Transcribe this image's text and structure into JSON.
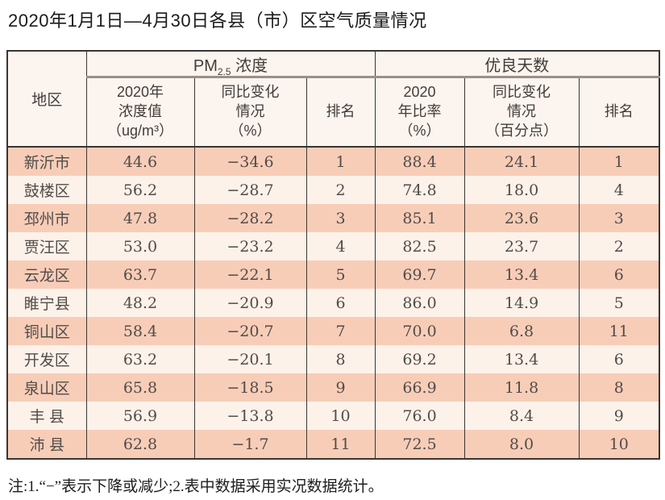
{
  "title": "2020年1月1日—4月30日各县（市）区空气质量情况",
  "footnote": "注:1.“−”表示下降或减少;2.表中数据采用实况数据统计。",
  "colors": {
    "row_salmon": "#f8cdb8",
    "row_cream": "#fdf2ea",
    "header_bg": "#fcf4ef",
    "border_dark": "#3a3531",
    "group_underline_gray": "#9a9089",
    "cell_text": "#514c49"
  },
  "table": {
    "corner_header": "地区",
    "groups": {
      "pm": {
        "prefix": "PM",
        "sub": "2.5",
        "suffix": " 浓度"
      },
      "days": {
        "label": "优良天数"
      }
    },
    "subheaders": {
      "pm_value": "2020年\n浓度值\n（ug/m³）",
      "pm_change": "同比变化\n情况\n（%）",
      "pm_rank": "排名",
      "ratio": "2020\n年比率\n（%）",
      "ratio_change": "同比变化\n情况\n（百分点）",
      "ratio_rank": "排名"
    },
    "rows": [
      {
        "region": "新沂市",
        "pm_value": "44.6",
        "pm_change": "−34.6",
        "pm_rank": "1",
        "ratio": "88.4",
        "ratio_change": "24.1",
        "ratio_rank": "1"
      },
      {
        "region": "鼓楼区",
        "pm_value": "56.2",
        "pm_change": "−28.7",
        "pm_rank": "2",
        "ratio": "74.8",
        "ratio_change": "18.0",
        "ratio_rank": "4"
      },
      {
        "region": "邳州市",
        "pm_value": "47.8",
        "pm_change": "−28.2",
        "pm_rank": "3",
        "ratio": "85.1",
        "ratio_change": "23.6",
        "ratio_rank": "3"
      },
      {
        "region": "贾汪区",
        "pm_value": "53.0",
        "pm_change": "−23.2",
        "pm_rank": "4",
        "ratio": "82.5",
        "ratio_change": "23.7",
        "ratio_rank": "2"
      },
      {
        "region": "云龙区",
        "pm_value": "63.7",
        "pm_change": "−22.1",
        "pm_rank": "5",
        "ratio": "69.7",
        "ratio_change": "13.4",
        "ratio_rank": "6"
      },
      {
        "region": "睢宁县",
        "pm_value": "48.2",
        "pm_change": "−20.9",
        "pm_rank": "6",
        "ratio": "86.0",
        "ratio_change": "14.9",
        "ratio_rank": "5"
      },
      {
        "region": "铜山区",
        "pm_value": "58.4",
        "pm_change": "−20.7",
        "pm_rank": "7",
        "ratio": "70.0",
        "ratio_change": "6.8",
        "ratio_rank": "11"
      },
      {
        "region": "开发区",
        "pm_value": "63.2",
        "pm_change": "−20.1",
        "pm_rank": "8",
        "ratio": "69.2",
        "ratio_change": "13.4",
        "ratio_rank": "6"
      },
      {
        "region": "泉山区",
        "pm_value": "65.8",
        "pm_change": "−18.5",
        "pm_rank": "9",
        "ratio": "66.9",
        "ratio_change": "11.8",
        "ratio_rank": "8"
      },
      {
        "region": "丰 县",
        "pm_value": "56.9",
        "pm_change": "−13.8",
        "pm_rank": "10",
        "ratio": "76.0",
        "ratio_change": "8.4",
        "ratio_rank": "9"
      },
      {
        "region": "沛 县",
        "pm_value": "62.8",
        "pm_change": "−1.7",
        "pm_rank": "11",
        "ratio": "72.5",
        "ratio_change": "8.0",
        "ratio_rank": "10"
      }
    ]
  },
  "chart_data": {
    "type": "table",
    "title": "2020年1月1日—4月30日各县（市）区空气质量情况",
    "columns": [
      "地区",
      "PM2.5浓度 2020年浓度值（ug/m³）",
      "PM2.5浓度 同比变化情况（%）",
      "PM2.5浓度 排名",
      "优良天数 2020年比率（%）",
      "优良天数 同比变化情况（百分点）",
      "优良天数 排名"
    ],
    "rows": [
      [
        "新沂市",
        44.6,
        -34.6,
        1,
        88.4,
        24.1,
        1
      ],
      [
        "鼓楼区",
        56.2,
        -28.7,
        2,
        74.8,
        18.0,
        4
      ],
      [
        "邳州市",
        47.8,
        -28.2,
        3,
        85.1,
        23.6,
        3
      ],
      [
        "贾汪区",
        53.0,
        -23.2,
        4,
        82.5,
        23.7,
        2
      ],
      [
        "云龙区",
        63.7,
        -22.1,
        5,
        69.7,
        13.4,
        6
      ],
      [
        "睢宁县",
        48.2,
        -20.9,
        6,
        86.0,
        14.9,
        5
      ],
      [
        "铜山区",
        58.4,
        -20.7,
        7,
        70.0,
        6.8,
        11
      ],
      [
        "开发区",
        63.2,
        -20.1,
        8,
        69.2,
        13.4,
        6
      ],
      [
        "泉山区",
        65.8,
        -18.5,
        9,
        66.9,
        11.8,
        8
      ],
      [
        "丰县",
        56.9,
        -13.8,
        10,
        76.0,
        8.4,
        9
      ],
      [
        "沛县",
        62.8,
        -1.7,
        11,
        72.5,
        8.0,
        10
      ]
    ]
  }
}
